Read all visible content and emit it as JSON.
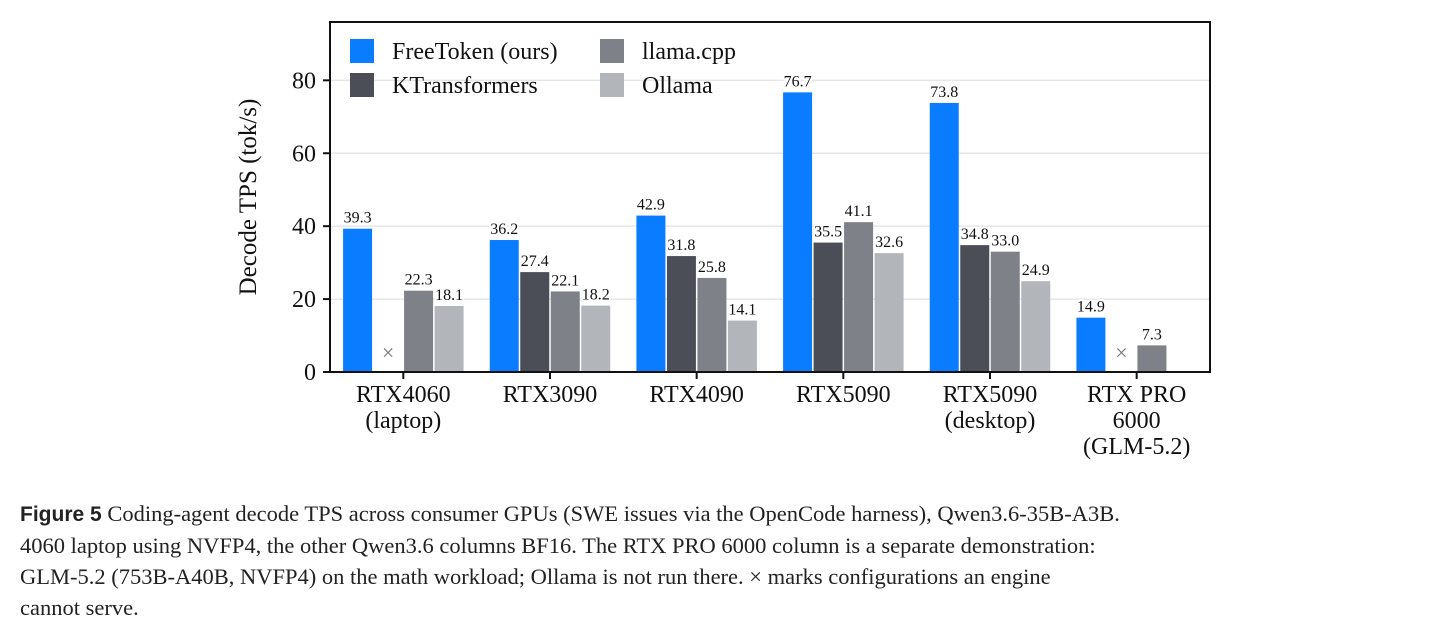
{
  "chart_data": {
    "type": "bar",
    "ylabel": "Decode TPS (tok/s)",
    "ylim": [
      0,
      96
    ],
    "yticks": [
      0,
      20,
      40,
      60,
      80
    ],
    "grid": true,
    "legend_position": "top-left",
    "categories": [
      [
        "RTX4060",
        "(laptop)"
      ],
      [
        "RTX3090"
      ],
      [
        "RTX4090"
      ],
      [
        "RTX5090"
      ],
      [
        "RTX5090",
        "(desktop)"
      ],
      [
        "RTX PRO",
        "6000",
        "(GLM-5.2)"
      ]
    ],
    "series": [
      {
        "name": "FreeToken (ours)",
        "color": "#0a7cff",
        "values": [
          39.3,
          36.2,
          42.9,
          76.7,
          73.8,
          14.9
        ]
      },
      {
        "name": "KTransformers",
        "color": "#4b4e57",
        "values": [
          null,
          27.4,
          31.8,
          35.5,
          34.8,
          null
        ]
      },
      {
        "name": "llama.cpp",
        "color": "#7e8288",
        "values": [
          22.3,
          22.1,
          25.8,
          41.1,
          33.0,
          7.3
        ]
      },
      {
        "name": "Ollama",
        "color": "#b2b5b9",
        "values": [
          18.1,
          18.2,
          14.1,
          32.6,
          24.9,
          null
        ]
      }
    ],
    "unsupported_marker": "×",
    "unsupported": [
      {
        "category": 0,
        "series": 1
      },
      {
        "category": 5,
        "series": 1
      }
    ]
  },
  "caption": {
    "label": "Figure 5",
    "lines": [
      "Coding-agent decode TPS across consumer GPUs (SWE issues via the OpenCode harness), Qwen3.6-35B-A3B.",
      "4060 laptop using NVFP4, the other Qwen3.6 columns BF16. The RTX PRO 6000 column is a separate demonstration:",
      "GLM-5.2 (753B-A40B, NVFP4) on the math workload; Ollama is not run there. × marks configurations an engine",
      "cannot serve."
    ]
  }
}
